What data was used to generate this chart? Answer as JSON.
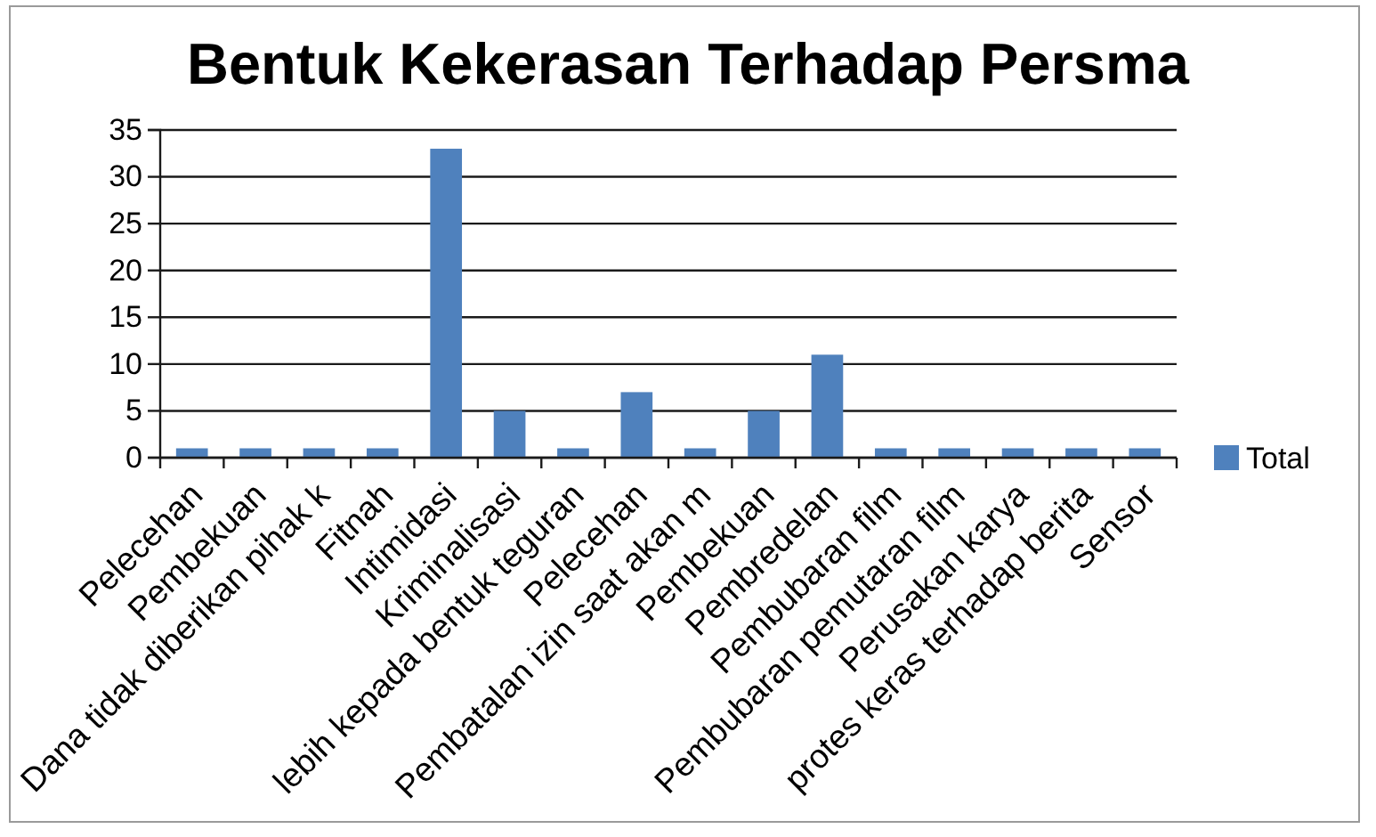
{
  "chart_data": {
    "type": "bar",
    "title": "Bentuk Kekerasan Terhadap Persma",
    "categories": [
      "Pelecehan",
      "Pembekuan",
      "Dana tidak diberikan pihak k",
      "Fitnah",
      "Intimidasi",
      "Kriminalisasi",
      "lebih kepada bentuk teguran",
      "Pelecehan",
      "Pembatalan izin saat akan m",
      "Pembekuan",
      "Pembredelan",
      "Pembubaran film",
      "Pembubaran pemutaran film",
      "Perusakan karya",
      "protes keras terhadap berita",
      "Sensor"
    ],
    "series": [
      {
        "name": "Total",
        "color": "#4f81bd",
        "values": [
          1,
          1,
          1,
          1,
          33,
          5,
          1,
          7,
          1,
          5,
          11,
          1,
          1,
          1,
          1,
          1
        ]
      }
    ],
    "ylim": [
      0,
      35
    ],
    "yticks": [
      0,
      5,
      10,
      15,
      20,
      25,
      30,
      35
    ],
    "grid": "y",
    "legend": "right"
  }
}
